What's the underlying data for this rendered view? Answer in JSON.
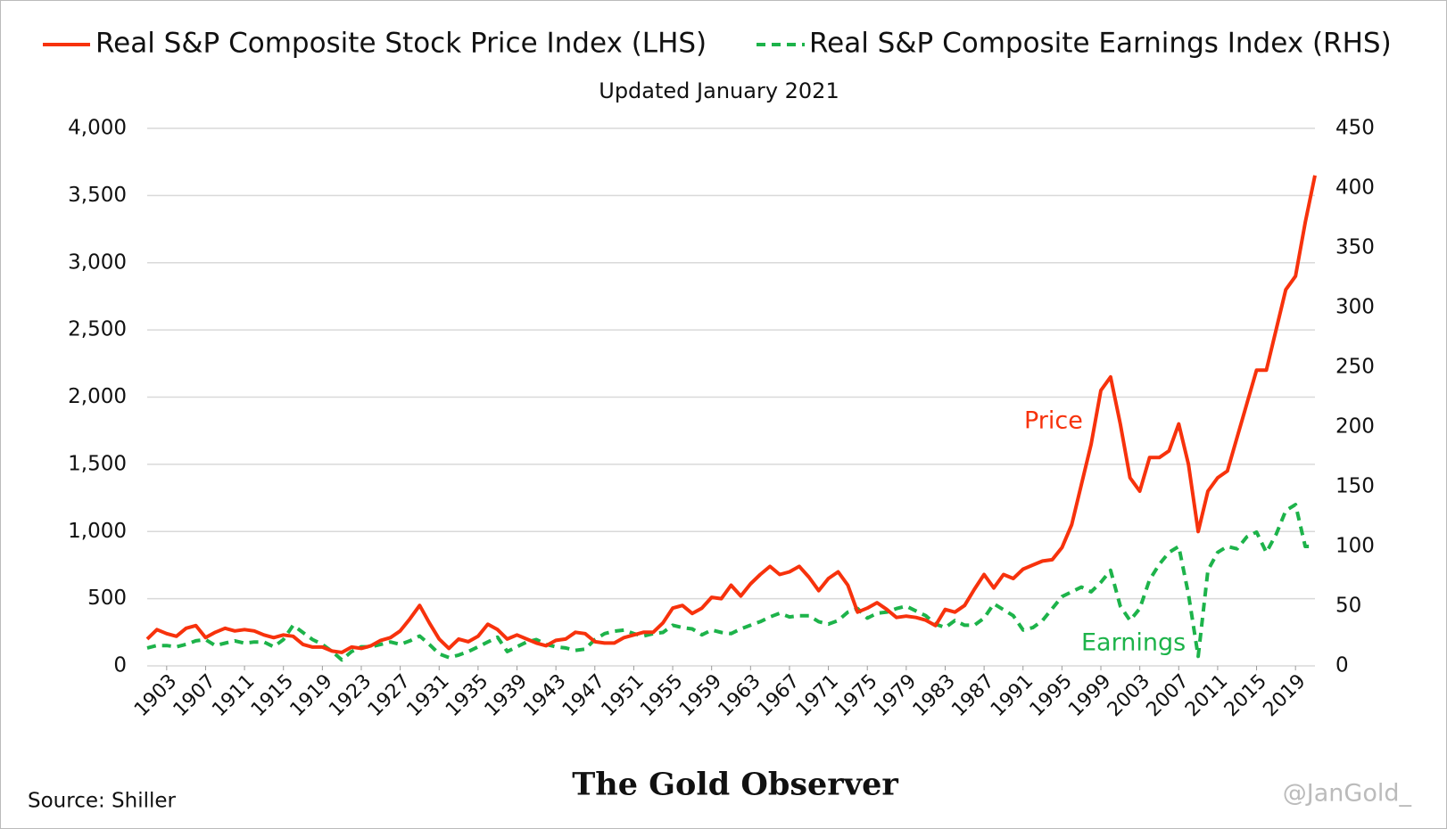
{
  "chart_data": {
    "type": "line",
    "subtitle": "Updated January 2021",
    "x": [
      1901,
      1902,
      1903,
      1904,
      1905,
      1906,
      1907,
      1908,
      1909,
      1910,
      1911,
      1912,
      1913,
      1914,
      1915,
      1916,
      1917,
      1918,
      1919,
      1920,
      1921,
      1922,
      1923,
      1924,
      1925,
      1926,
      1927,
      1928,
      1929,
      1930,
      1931,
      1932,
      1933,
      1934,
      1935,
      1936,
      1937,
      1938,
      1939,
      1940,
      1941,
      1942,
      1943,
      1944,
      1945,
      1946,
      1947,
      1948,
      1949,
      1950,
      1951,
      1952,
      1953,
      1954,
      1955,
      1956,
      1957,
      1958,
      1959,
      1960,
      1961,
      1962,
      1963,
      1964,
      1965,
      1966,
      1967,
      1968,
      1969,
      1970,
      1971,
      1972,
      1973,
      1974,
      1975,
      1976,
      1977,
      1978,
      1979,
      1980,
      1981,
      1982,
      1983,
      1984,
      1985,
      1986,
      1987,
      1988,
      1989,
      1990,
      1991,
      1992,
      1993,
      1994,
      1995,
      1996,
      1997,
      1998,
      1999,
      2000,
      2001,
      2002,
      2003,
      2004,
      2005,
      2006,
      2007,
      2008,
      2009,
      2010,
      2011,
      2012,
      2013,
      2014,
      2015,
      2016,
      2017,
      2018,
      2019,
      2020,
      2021
    ],
    "series": [
      {
        "name": "Real S&P Composite Stock Price Index (LHS)",
        "color": "#f7320c",
        "axis": "y",
        "values": [
          200,
          270,
          240,
          220,
          280,
          300,
          210,
          250,
          280,
          260,
          270,
          260,
          230,
          210,
          230,
          220,
          160,
          140,
          140,
          110,
          100,
          140,
          130,
          150,
          190,
          210,
          260,
          350,
          450,
          320,
          200,
          130,
          200,
          180,
          220,
          310,
          270,
          200,
          230,
          200,
          170,
          150,
          190,
          200,
          250,
          240,
          180,
          170,
          170,
          210,
          230,
          250,
          250,
          320,
          430,
          450,
          390,
          430,
          510,
          500,
          600,
          520,
          610,
          680,
          740,
          680,
          700,
          740,
          660,
          560,
          650,
          700,
          600,
          400,
          430,
          470,
          420,
          360,
          370,
          360,
          340,
          300,
          420,
          400,
          450,
          570,
          680,
          580,
          680,
          650,
          720,
          750,
          780,
          790,
          880,
          1050,
          1350,
          1650,
          2050,
          2150,
          1800,
          1400,
          1300,
          1550,
          1550,
          1600,
          1800,
          1500,
          1000,
          1300,
          1400,
          1450,
          1700,
          1950,
          2200,
          2200,
          2500,
          2800,
          2900,
          3300,
          3650
        ]
      },
      {
        "name": "Real S&P Composite Earnings Index (RHS)",
        "color": "#1db34a",
        "axis": "y2",
        "dashed": true,
        "values": [
          15,
          17,
          17,
          16,
          18,
          21,
          22,
          17,
          19,
          21,
          19,
          20,
          20,
          16,
          22,
          34,
          28,
          22,
          18,
          12,
          5,
          12,
          16,
          16,
          18,
          20,
          18,
          21,
          25,
          18,
          10,
          7,
          9,
          12,
          16,
          20,
          24,
          12,
          16,
          20,
          22,
          18,
          16,
          15,
          13,
          14,
          22,
          27,
          29,
          30,
          27,
          25,
          27,
          28,
          34,
          32,
          31,
          26,
          30,
          28,
          27,
          31,
          34,
          37,
          41,
          44,
          41,
          42,
          42,
          37,
          35,
          38,
          45,
          48,
          40,
          44,
          45,
          48,
          50,
          46,
          42,
          35,
          32,
          38,
          34,
          34,
          40,
          52,
          47,
          42,
          30,
          32,
          38,
          48,
          58,
          62,
          66,
          62,
          70,
          80,
          50,
          38,
          48,
          72,
          85,
          95,
          100,
          60,
          8,
          80,
          95,
          100,
          98,
          108,
          112,
          95,
          110,
          130,
          135,
          100,
          100
        ]
      }
    ],
    "xlim": [
      1901,
      2021
    ],
    "xticks": [
      1903,
      1907,
      1911,
      1915,
      1919,
      1923,
      1927,
      1931,
      1935,
      1939,
      1943,
      1947,
      1951,
      1955,
      1959,
      1963,
      1967,
      1971,
      1975,
      1979,
      1983,
      1987,
      1991,
      1995,
      1999,
      2003,
      2007,
      2011,
      2015,
      2019
    ],
    "ylim": [
      0,
      4000
    ],
    "yticks": [
      0,
      500,
      {
        "value": 1000,
        "label": "1,000"
      },
      {
        "value": 1500,
        "label": "1,500"
      },
      {
        "value": 2000,
        "label": "2,000"
      },
      {
        "value": 2500,
        "label": "2,500"
      },
      {
        "value": 3000,
        "label": "3,000"
      },
      {
        "value": 3500,
        "label": "3,500"
      },
      {
        "value": 4000,
        "label": "4,000"
      }
    ],
    "y2lim": [
      0,
      450
    ],
    "y2ticks": [
      0,
      50,
      100,
      150,
      200,
      250,
      300,
      350,
      400,
      450
    ],
    "grid": true,
    "annotations": [
      "Price",
      "Earnings"
    ],
    "source": "Source: Shiller",
    "brand": "The Gold Observer",
    "handle": "@JanGold_"
  }
}
